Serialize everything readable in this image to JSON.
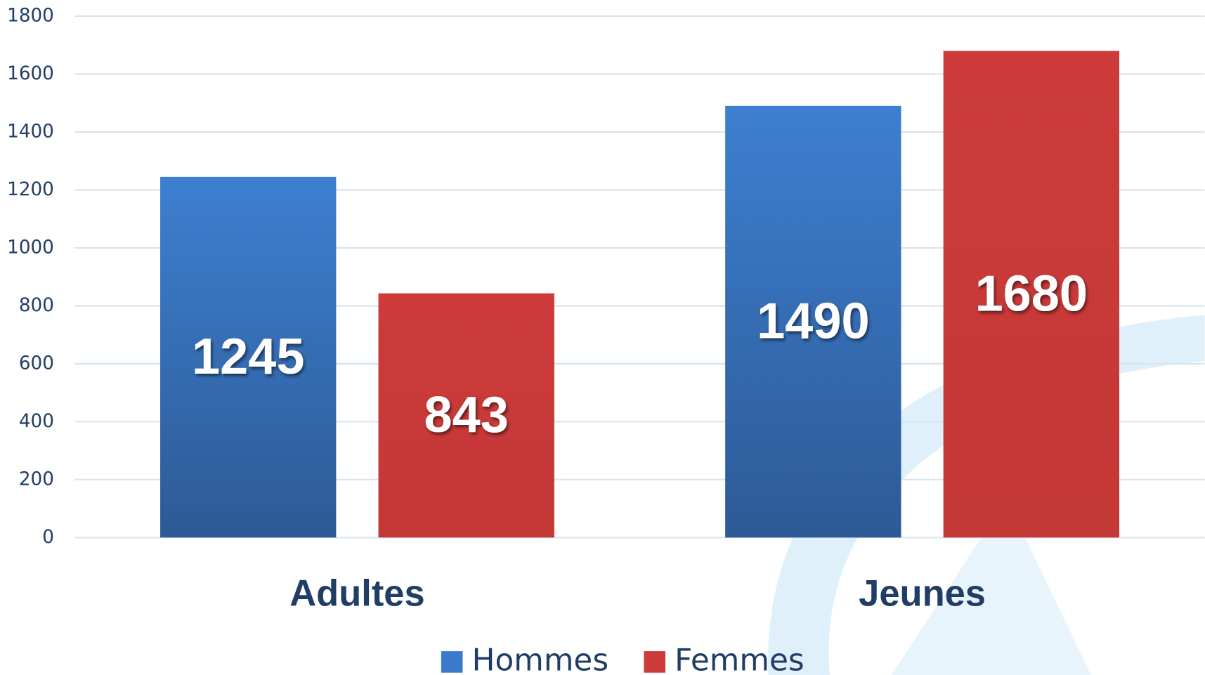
{
  "chart_data": {
    "type": "bar",
    "categories": [
      "Adultes",
      "Jeunes"
    ],
    "series": [
      {
        "name": "Hommes",
        "color": "#3b7bcc",
        "values": [
          1245,
          1490
        ]
      },
      {
        "name": "Femmes",
        "color": "#cc3b3a",
        "values": [
          843,
          1680
        ]
      }
    ],
    "ylim": [
      0,
      1800
    ],
    "yticks": [
      0,
      200,
      400,
      600,
      800,
      1000,
      1200,
      1400,
      1600,
      1800
    ],
    "grid": true,
    "legend": "bottom"
  }
}
